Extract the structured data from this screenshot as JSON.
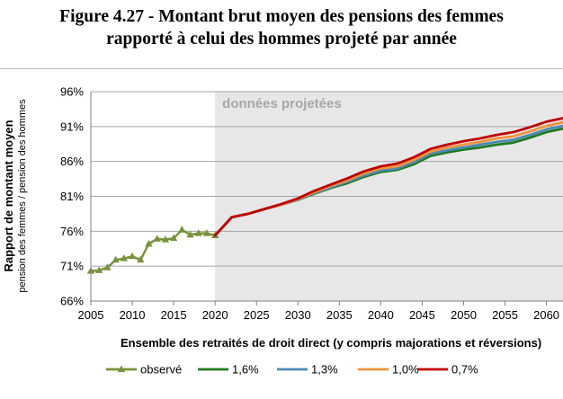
{
  "figure": {
    "title_line1": "Figure 4.27 - Montant brut moyen des pensions des femmes",
    "title_line2": "rapporté à celui des hommes projeté par année"
  },
  "chart_data": {
    "type": "line",
    "ylabel_main": "Rapport de montant moyen",
    "ylabel_sub": "pension des femmes / pension des  hommes",
    "xlabel": "Ensemble des retraités de droit direct (y compris majorations et réversions)",
    "annotation": "données projetées",
    "projection_start": 2020,
    "xlim": [
      2005,
      2062
    ],
    "ylim": [
      66,
      96
    ],
    "x_ticks": [
      2005,
      2010,
      2015,
      2020,
      2025,
      2030,
      2035,
      2040,
      2045,
      2050,
      2055,
      2060
    ],
    "y_ticks": [
      66,
      71,
      76,
      81,
      86,
      91,
      96
    ],
    "y_tick_labels": [
      "66%",
      "71%",
      "76%",
      "81%",
      "86%",
      "91%",
      "96%"
    ],
    "grid": "horizontal",
    "legend_position": "bottom",
    "series": [
      {
        "name": "observé",
        "color": "#77933c",
        "marker": "triangle",
        "x": [
          2005,
          2006,
          2007,
          2008,
          2009,
          2010,
          2011,
          2012,
          2013,
          2014,
          2015,
          2016,
          2017,
          2018,
          2019,
          2020
        ],
        "y": [
          70.3,
          70.4,
          70.8,
          71.9,
          72.1,
          72.4,
          71.9,
          74.2,
          74.9,
          74.8,
          75.0,
          76.2,
          75.5,
          75.7,
          75.7,
          75.4
        ]
      },
      {
        "name": "1,6%",
        "color": "#1e7b1e",
        "x": [
          2020,
          2022,
          2024,
          2026,
          2028,
          2030,
          2032,
          2034,
          2036,
          2038,
          2040,
          2042,
          2044,
          2046,
          2048,
          2050,
          2052,
          2054,
          2056,
          2058,
          2060,
          2062
        ],
        "y": [
          75.4,
          78.0,
          78.5,
          79.2,
          79.8,
          80.5,
          81.4,
          82.2,
          82.9,
          83.8,
          84.5,
          84.8,
          85.6,
          86.8,
          87.3,
          87.7,
          88.0,
          88.4,
          88.7,
          89.4,
          90.2,
          90.7
        ]
      },
      {
        "name": "1,3%",
        "color": "#4a8ab5",
        "x": [
          2020,
          2022,
          2024,
          2026,
          2028,
          2030,
          2032,
          2034,
          2036,
          2038,
          2040,
          2042,
          2044,
          2046,
          2048,
          2050,
          2052,
          2054,
          2056,
          2058,
          2060,
          2062
        ],
        "y": [
          75.4,
          78.0,
          78.5,
          79.2,
          79.8,
          80.5,
          81.5,
          82.3,
          83.1,
          84.0,
          84.7,
          85.0,
          85.9,
          87.1,
          87.6,
          88.0,
          88.4,
          88.8,
          89.1,
          89.8,
          90.6,
          91.1
        ]
      },
      {
        "name": "1,0%",
        "color": "#f0923a",
        "x": [
          2020,
          2022,
          2024,
          2026,
          2028,
          2030,
          2032,
          2034,
          2036,
          2038,
          2040,
          2042,
          2044,
          2046,
          2048,
          2050,
          2052,
          2054,
          2056,
          2058,
          2060,
          2062
        ],
        "y": [
          75.4,
          78.0,
          78.5,
          79.2,
          79.8,
          80.6,
          81.6,
          82.5,
          83.3,
          84.3,
          85.0,
          85.3,
          86.2,
          87.4,
          88.0,
          88.4,
          88.8,
          89.3,
          89.6,
          90.3,
          91.1,
          91.6
        ]
      },
      {
        "name": "0,7%",
        "color": "#c00000",
        "x": [
          2020,
          2022,
          2024,
          2026,
          2028,
          2030,
          2032,
          2034,
          2036,
          2038,
          2040,
          2042,
          2044,
          2046,
          2048,
          2050,
          2052,
          2054,
          2056,
          2058,
          2060,
          2062
        ],
        "y": [
          75.4,
          78.0,
          78.5,
          79.2,
          79.9,
          80.7,
          81.8,
          82.7,
          83.6,
          84.6,
          85.3,
          85.7,
          86.6,
          87.8,
          88.4,
          88.9,
          89.3,
          89.8,
          90.2,
          90.9,
          91.7,
          92.2
        ]
      }
    ]
  }
}
